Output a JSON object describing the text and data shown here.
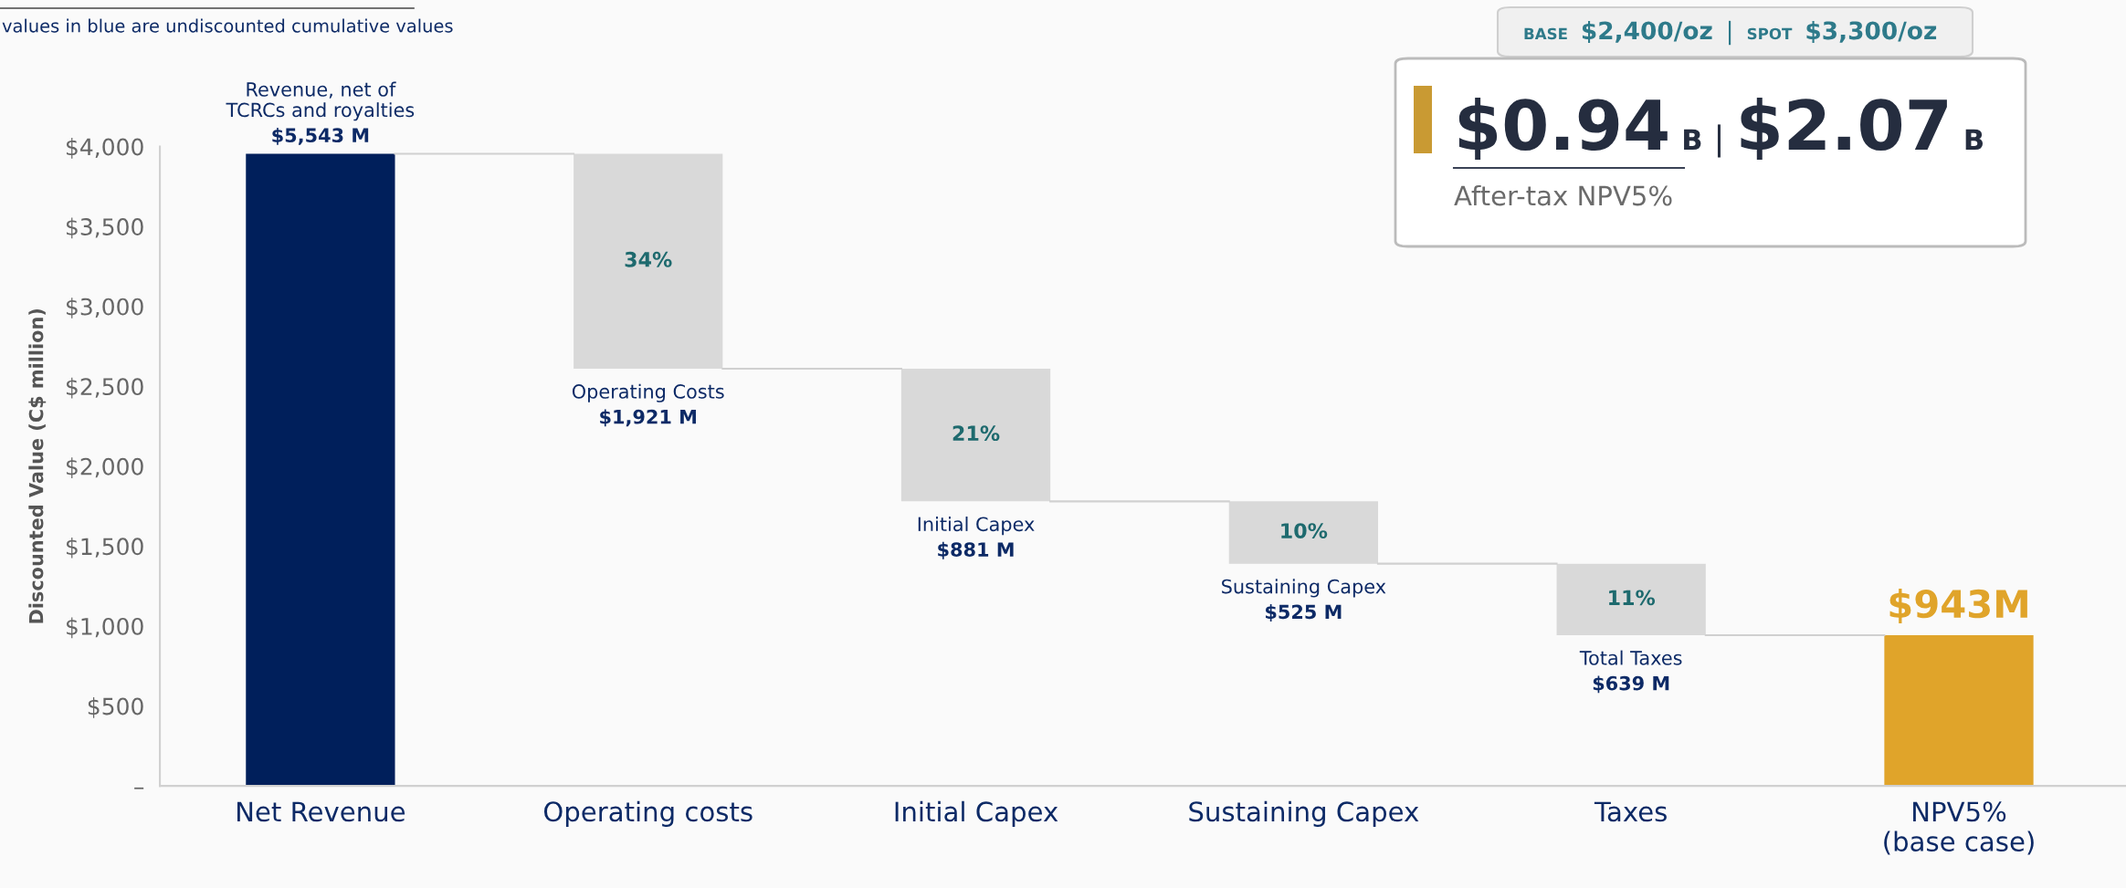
{
  "chart_data": {
    "type": "bar",
    "ylabel": "Discounted Value (C$ million)",
    "categories": [
      "Net Revenue",
      "Operating costs",
      "Initial Capex",
      "Sustaining Capex",
      "Taxes",
      "NPV5%\n(base case)"
    ],
    "values": [
      3955,
      1345,
      830,
      390,
      447,
      943
    ],
    "base": [
      0,
      2610,
      1780,
      1390,
      943,
      0
    ],
    "colors": [
      "#001f5b",
      "#d9d9d9",
      "#d9d9d9",
      "#d9d9d9",
      "#d9d9d9",
      "#e0a42a"
    ],
    "value_labels": [
      null,
      null,
      null,
      null,
      null,
      "$943M"
    ],
    "ylim": [
      0,
      4000
    ],
    "yticks": [
      {
        "value": 0,
        "label": "–"
      },
      {
        "value": 500,
        "label": "$500"
      },
      {
        "value": 1000,
        "label": "$1,000"
      },
      {
        "value": 1500,
        "label": "$1,500"
      },
      {
        "value": 2000,
        "label": "$2,000"
      },
      {
        "value": 2500,
        "label": "$2,500"
      },
      {
        "value": 3000,
        "label": "$3,000"
      },
      {
        "value": 3500,
        "label": "$3,500"
      },
      {
        "value": 4000,
        "label": "$4,000"
      }
    ],
    "grid": false,
    "legend": false,
    "annotations": [
      "values in blue are undiscounted cumulative values",
      {
        "text": "Revenue, net of TCRCs and royalties",
        "x": "Net Revenue",
        "y": 3955
      },
      {
        "text": "$5,543 M",
        "x": "Net Revenue",
        "y": 3955
      },
      {
        "text": "Operating Costs",
        "x": "Operating costs",
        "y": 2610
      },
      {
        "text": "$1,921 M",
        "x": "Operating costs",
        "y": 2610
      },
      {
        "text": "Initial Capex",
        "x": "Initial Capex",
        "y": 1780
      },
      {
        "text": "$881 M",
        "x": "Initial Capex",
        "y": 1780
      },
      {
        "text": "Sustaining Capex",
        "x": "Sustaining Capex",
        "y": 1390
      },
      {
        "text": "$525 M",
        "x": "Sustaining Capex",
        "y": 1390
      },
      {
        "text": "Total Taxes",
        "x": "Taxes",
        "y": 943
      },
      {
        "text": "$639 M",
        "x": "Taxes",
        "y": 943
      },
      "34%",
      "21%",
      "10%",
      "11%",
      "BASE",
      "$2,400/oz",
      "|",
      "SPOT",
      "$3,300/oz",
      "$0.94",
      "B",
      "|",
      "$2.07",
      "B",
      "After-tax NPV5%"
    ]
  }
}
